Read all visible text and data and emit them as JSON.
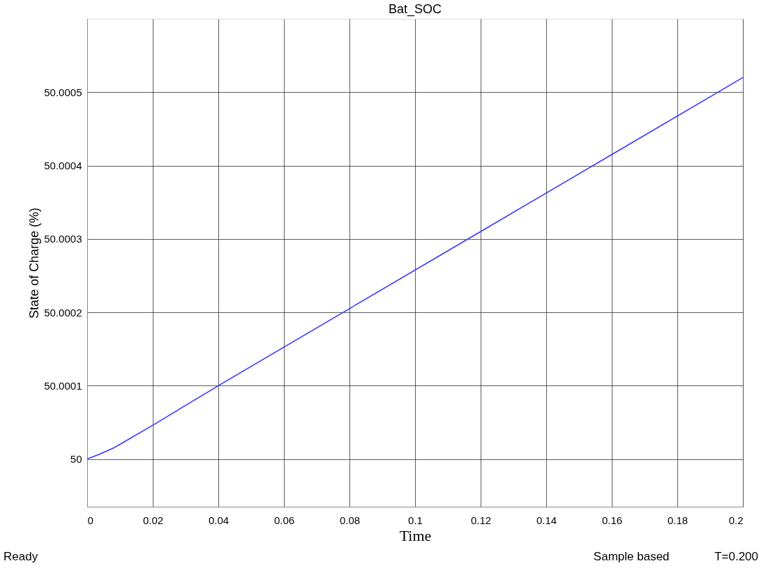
{
  "chart_data": {
    "type": "line",
    "title": "Bat_SOC",
    "xlabel": "Time",
    "ylabel": "State of Charge (%)",
    "x": [
      0,
      0.004,
      0.008,
      0.01,
      0.02,
      0.04,
      0.08,
      0.12,
      0.16,
      0.2
    ],
    "series": [
      {
        "color": "#3333ff",
        "values": [
          50,
          50.000007,
          50.000015,
          50.00002,
          50.000046,
          50.0001,
          50.000205,
          50.00031,
          50.000415,
          50.00052
        ]
      }
    ],
    "xlim": [
      0,
      0.2
    ],
    "xticks": [
      0,
      0.02,
      0.04,
      0.06,
      0.08,
      0.1,
      0.12,
      0.14,
      0.16,
      0.18,
      0.2
    ],
    "ylim": [
      49.999935,
      50.0006
    ],
    "yticks": [
      50,
      50.0001,
      50.0002,
      50.0003,
      50.0004,
      50.0005
    ],
    "grid": true,
    "marker": "none",
    "line_style": "solid",
    "annotations": [
      "Ready",
      "Sample based",
      "T=0.200"
    ]
  }
}
